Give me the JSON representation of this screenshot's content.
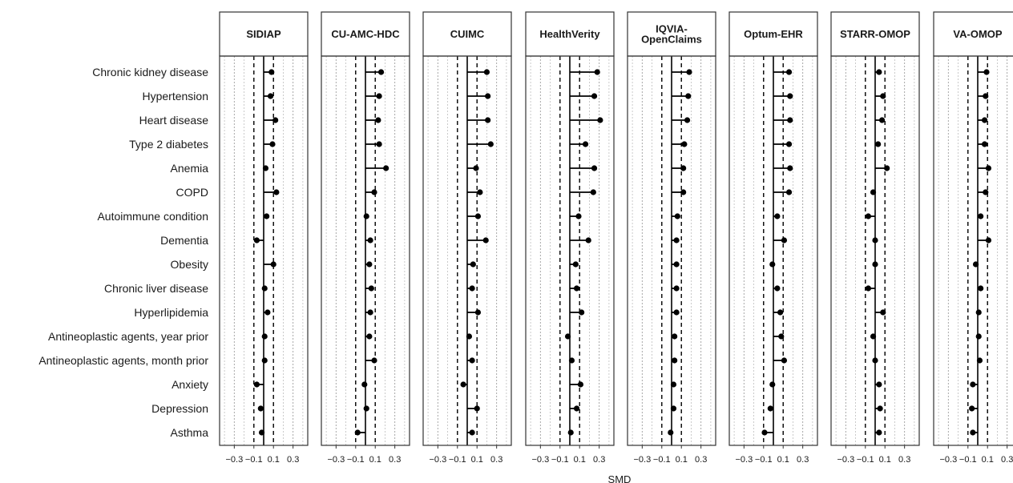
{
  "chart_data": {
    "type": "scatter",
    "xlabel": "SMD",
    "ylabel": "",
    "xlim": [
      -0.45,
      0.45
    ],
    "x_ticks": [
      "-0.3",
      "-0.1",
      "0.1",
      "0.3"
    ],
    "x_tick_values": [
      -0.3,
      -0.1,
      0.1,
      0.3
    ],
    "x_minor_gridlines": [
      -0.4,
      -0.2,
      0.2,
      0.4
    ],
    "reference_lines": {
      "zero": 0,
      "dashed": [
        -0.1,
        0.1
      ]
    },
    "grid": true,
    "point_color": "#000000",
    "categories": [
      "Chronic kidney disease",
      "Hypertension",
      "Heart disease",
      "Type 2 diabetes",
      "Anemia",
      "COPD",
      "Autoimmune condition",
      "Dementia",
      "Obesity",
      "Chronic liver disease",
      "Hyperlipidemia",
      "Antineoplastic agents, year prior",
      "Antineoplastic agents, month prior",
      "Anxiety",
      "Depression",
      "Asthma"
    ],
    "panels": [
      {
        "name": "SIDIAP",
        "values": [
          0.08,
          0.07,
          0.12,
          0.09,
          0.02,
          0.13,
          0.03,
          -0.07,
          0.1,
          0.01,
          0.04,
          0.01,
          0.01,
          -0.07,
          -0.03,
          -0.02
        ]
      },
      {
        "name": "CU-AMC-HDC",
        "values": [
          0.16,
          0.14,
          0.13,
          0.14,
          0.21,
          0.09,
          0.01,
          0.05,
          0.04,
          0.06,
          0.05,
          0.04,
          0.09,
          -0.01,
          0.01,
          -0.08
        ]
      },
      {
        "name": "CUIMC",
        "values": [
          0.2,
          0.21,
          0.21,
          0.24,
          0.09,
          0.13,
          0.11,
          0.19,
          0.06,
          0.05,
          0.11,
          0.02,
          0.05,
          -0.04,
          0.1,
          0.05
        ]
      },
      {
        "name": "HealthVerity",
        "values": [
          0.28,
          0.25,
          0.31,
          0.16,
          0.25,
          0.24,
          0.09,
          0.19,
          0.06,
          0.07,
          0.12,
          -0.02,
          0.02,
          0.11,
          0.07,
          0.01
        ]
      },
      {
        "name": "IQVIA-\nOpenClaims",
        "values": [
          0.18,
          0.17,
          0.16,
          0.13,
          0.12,
          0.12,
          0.06,
          0.05,
          0.05,
          0.05,
          0.05,
          0.03,
          0.03,
          0.02,
          0.02,
          -0.01
        ]
      },
      {
        "name": "Optum-EHR",
        "values": [
          0.16,
          0.17,
          0.17,
          0.16,
          0.17,
          0.16,
          0.04,
          0.11,
          -0.01,
          0.04,
          0.07,
          0.08,
          0.11,
          -0.01,
          -0.03,
          -0.09
        ]
      },
      {
        "name": "STARR-OMOP",
        "values": [
          0.04,
          0.08,
          0.07,
          0.03,
          0.12,
          -0.02,
          -0.07,
          0.0,
          0.0,
          -0.07,
          0.08,
          -0.02,
          0.0,
          0.04,
          0.05,
          0.04
        ]
      },
      {
        "name": "VA-OMOP",
        "values": [
          0.09,
          0.08,
          0.07,
          0.07,
          0.11,
          0.08,
          0.03,
          0.11,
          -0.02,
          0.03,
          0.01,
          0.01,
          0.02,
          -0.05,
          -0.06,
          -0.05
        ]
      }
    ]
  }
}
